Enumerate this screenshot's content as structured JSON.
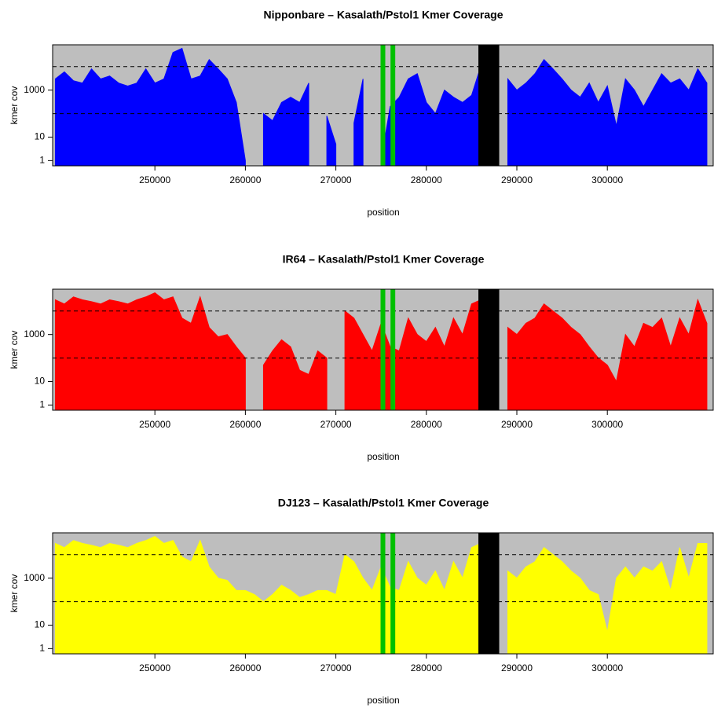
{
  "chart_data": [
    {
      "type": "area",
      "title": "Nipponbare – Kasalath/Pstol1 Kmer Coverage",
      "xlabel": "position",
      "ylabel": "kmer cov",
      "color": "#0000ff",
      "xlim": [
        238700,
        311700
      ],
      "xticks": [
        250000,
        260000,
        270000,
        280000,
        290000,
        300000
      ],
      "ylim": [
        0.6,
        85000
      ],
      "yticks": [
        1,
        10,
        1000
      ],
      "log_y": true,
      "reference_lines": [
        100,
        10000
      ],
      "markers": [
        {
          "x": 275200,
          "color": "#00c000"
        },
        {
          "x": 276300,
          "color": "#00c000"
        }
      ],
      "region": {
        "xlim": [
          285750,
          288050
        ],
        "color": "#000000"
      },
      "x": [
        239000,
        240000,
        241000,
        242000,
        243000,
        244000,
        245000,
        246000,
        247000,
        248000,
        249000,
        250000,
        251000,
        252000,
        253000,
        254000,
        255000,
        256000,
        257000,
        258000,
        259000,
        260000,
        261000,
        262000,
        263000,
        264000,
        265000,
        266000,
        267000,
        268000,
        269000,
        270000,
        271000,
        272000,
        273000,
        274000,
        275000,
        276000,
        277000,
        278000,
        279000,
        280000,
        281000,
        282000,
        283000,
        284000,
        285000,
        286000,
        287000,
        288000,
        289000,
        290000,
        291000,
        292000,
        293000,
        294000,
        295000,
        296000,
        297000,
        298000,
        299000,
        300000,
        301000,
        302000,
        303000,
        304000,
        305000,
        306000,
        307000,
        308000,
        309000,
        310000,
        311000
      ],
      "values": [
        3000,
        6000,
        2500,
        2000,
        8000,
        3000,
        4000,
        2000,
        1500,
        2000,
        8000,
        2000,
        3000,
        40000,
        60000,
        3000,
        4000,
        20000,
        8000,
        3000,
        300,
        1,
        null,
        100,
        50,
        300,
        500,
        300,
        2000,
        null,
        80,
        5,
        null,
        40,
        3000,
        null,
        1,
        200,
        500,
        3000,
        5000,
        300,
        100,
        1000,
        500,
        300,
        600,
        10000,
        null,
        null,
        3000,
        1000,
        2000,
        5000,
        20000,
        8000,
        3000,
        1000,
        500,
        2000,
        300,
        1500,
        30,
        3000,
        1000,
        200,
        1000,
        5000,
        2000,
        3000,
        1000,
        8000,
        2000
      ]
    },
    {
      "type": "area",
      "title": "IR64 – Kasalath/Pstol1 Kmer Coverage",
      "xlabel": "position",
      "ylabel": "kmer cov",
      "color": "#ff0000",
      "xlim": [
        238700,
        311700
      ],
      "xticks": [
        250000,
        260000,
        270000,
        280000,
        290000,
        300000
      ],
      "ylim": [
        0.6,
        85000
      ],
      "yticks": [
        1,
        10,
        1000
      ],
      "log_y": true,
      "reference_lines": [
        100,
        10000
      ],
      "markers": [
        {
          "x": 275200,
          "color": "#00c000"
        },
        {
          "x": 276300,
          "color": "#00c000"
        }
      ],
      "region": {
        "xlim": [
          285750,
          288050
        ],
        "color": "#000000"
      },
      "x": [
        239000,
        240000,
        241000,
        242000,
        243000,
        244000,
        245000,
        246000,
        247000,
        248000,
        249000,
        250000,
        251000,
        252000,
        253000,
        254000,
        255000,
        256000,
        257000,
        258000,
        259000,
        260000,
        261000,
        262000,
        263000,
        264000,
        265000,
        266000,
        267000,
        268000,
        269000,
        270000,
        271000,
        272000,
        273000,
        274000,
        275000,
        276000,
        277000,
        278000,
        279000,
        280000,
        281000,
        282000,
        283000,
        284000,
        285000,
        286000,
        287000,
        288000,
        289000,
        290000,
        291000,
        292000,
        293000,
        294000,
        295000,
        296000,
        297000,
        298000,
        299000,
        300000,
        301000,
        302000,
        303000,
        304000,
        305000,
        306000,
        307000,
        308000,
        309000,
        310000,
        311000
      ],
      "values": [
        30000,
        20000,
        40000,
        30000,
        25000,
        20000,
        30000,
        25000,
        20000,
        30000,
        40000,
        60000,
        30000,
        40000,
        5000,
        3000,
        40000,
        2000,
        800,
        1000,
        300,
        100,
        null,
        50,
        200,
        600,
        300,
        30,
        20,
        200,
        100,
        null,
        10000,
        5000,
        1000,
        200,
        3000,
        300,
        200,
        5000,
        1000,
        500,
        2000,
        300,
        5000,
        1000,
        20000,
        30000,
        null,
        null,
        2000,
        1000,
        3000,
        5000,
        20000,
        10000,
        5000,
        2000,
        1000,
        300,
        100,
        50,
        10,
        1000,
        300,
        3000,
        2000,
        5000,
        300,
        5000,
        1000,
        30000,
        3000
      ]
    },
    {
      "type": "area",
      "title": "DJ123 – Kasalath/Pstol1 Kmer Coverage",
      "xlabel": "position",
      "ylabel": "kmer cov",
      "color": "#ffff00",
      "xlim": [
        238700,
        311700
      ],
      "xticks": [
        250000,
        260000,
        270000,
        280000,
        290000,
        300000
      ],
      "ylim": [
        0.6,
        85000
      ],
      "yticks": [
        1,
        10,
        1000
      ],
      "log_y": true,
      "reference_lines": [
        100,
        10000
      ],
      "markers": [
        {
          "x": 275200,
          "color": "#00c000"
        },
        {
          "x": 276300,
          "color": "#00c000"
        }
      ],
      "region": {
        "xlim": [
          285750,
          288050
        ],
        "color": "#000000"
      },
      "x": [
        239000,
        240000,
        241000,
        242000,
        243000,
        244000,
        245000,
        246000,
        247000,
        248000,
        249000,
        250000,
        251000,
        252000,
        253000,
        254000,
        255000,
        256000,
        257000,
        258000,
        259000,
        260000,
        261000,
        262000,
        263000,
        264000,
        265000,
        266000,
        267000,
        268000,
        269000,
        270000,
        271000,
        272000,
        273000,
        274000,
        275000,
        276000,
        277000,
        278000,
        279000,
        280000,
        281000,
        282000,
        283000,
        284000,
        285000,
        286000,
        287000,
        288000,
        289000,
        290000,
        291000,
        292000,
        293000,
        294000,
        295000,
        296000,
        297000,
        298000,
        299000,
        300000,
        301000,
        302000,
        303000,
        304000,
        305000,
        306000,
        307000,
        308000,
        309000,
        310000,
        311000
      ],
      "values": [
        30000,
        20000,
        40000,
        30000,
        25000,
        20000,
        30000,
        25000,
        20000,
        30000,
        40000,
        60000,
        30000,
        40000,
        8000,
        5000,
        40000,
        3000,
        1000,
        800,
        300,
        300,
        200,
        100,
        200,
        500,
        300,
        150,
        200,
        300,
        300,
        200,
        10000,
        5000,
        1000,
        300,
        3000,
        400,
        300,
        5000,
        1000,
        500,
        2000,
        300,
        5000,
        1000,
        20000,
        30000,
        null,
        null,
        2000,
        1000,
        3000,
        5000,
        20000,
        10000,
        5000,
        2000,
        1000,
        300,
        200,
        5,
        1000,
        3000,
        1000,
        3000,
        2000,
        5000,
        300,
        20000,
        1000,
        30000,
        30000
      ]
    }
  ]
}
